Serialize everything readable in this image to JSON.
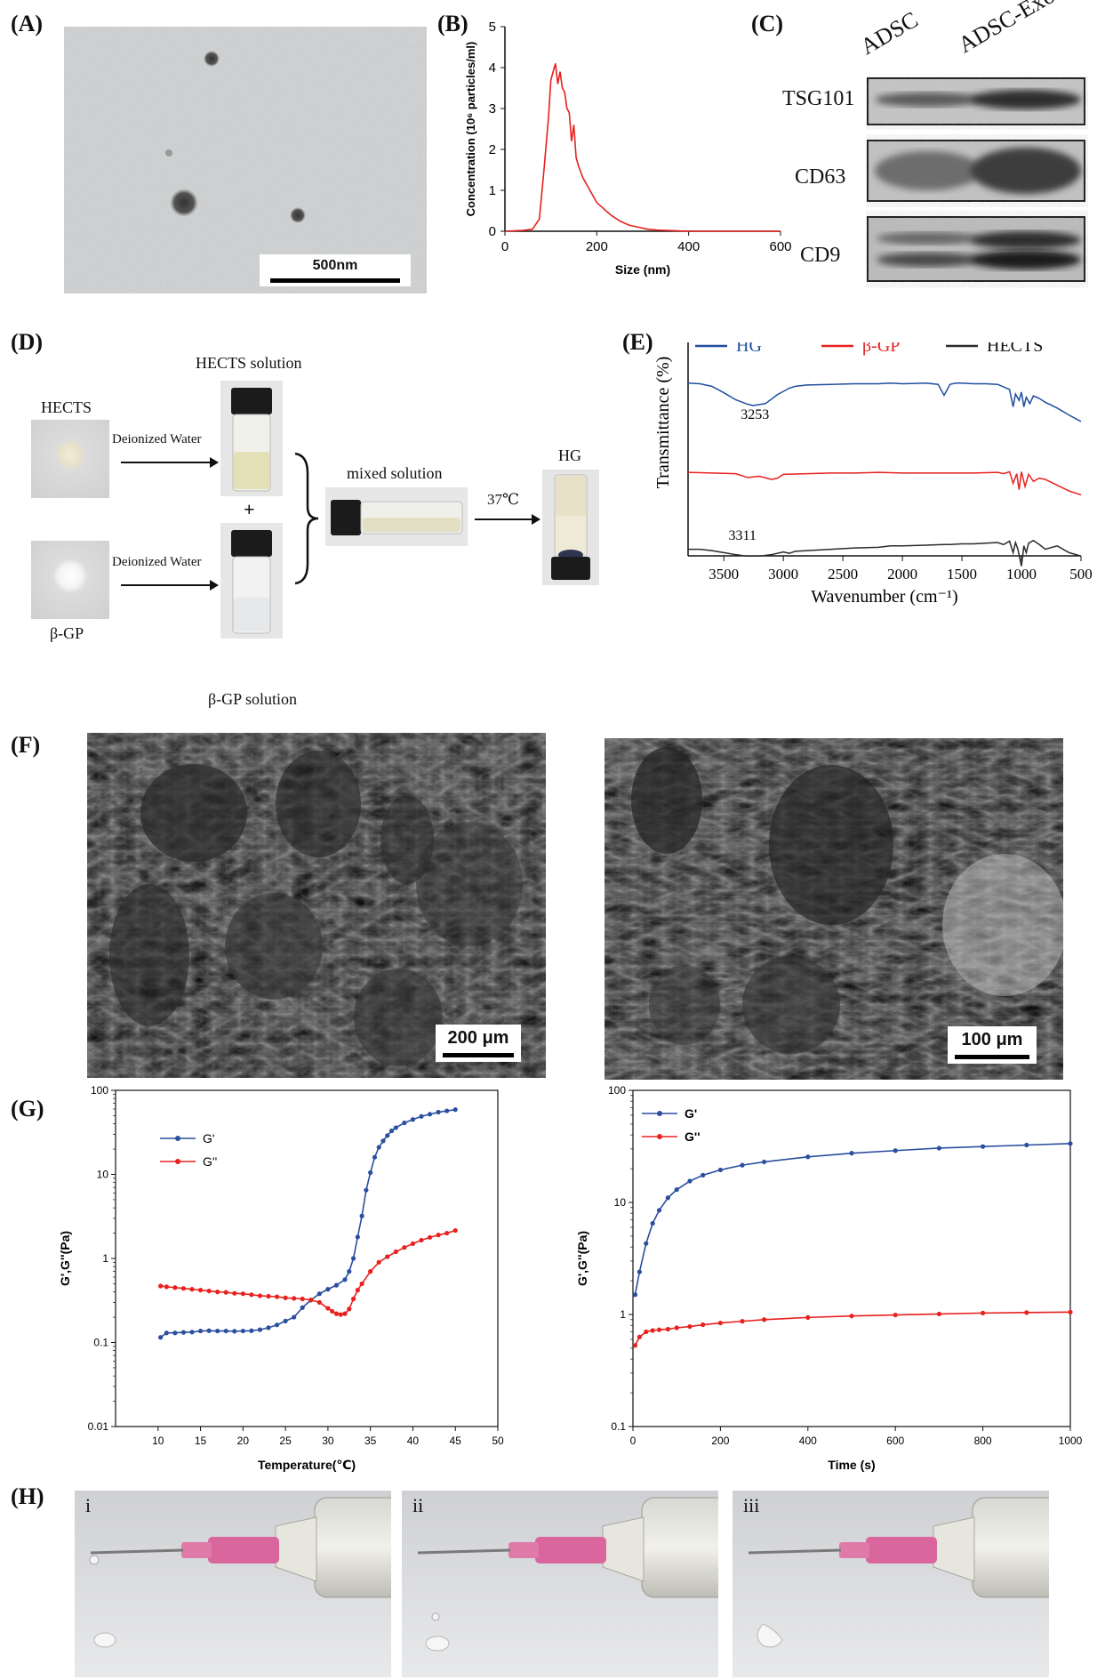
{
  "panels": {
    "A": {
      "label": "(A)",
      "scale_bar": "500nm"
    },
    "B": {
      "label": "(B)"
    },
    "C": {
      "label": "(C)",
      "columns": [
        "ADSC",
        "ADSC-Exo"
      ],
      "rows": [
        "TSG101",
        "CD63",
        "CD9"
      ]
    },
    "D": {
      "label": "(D)",
      "hects_label": "HECTS",
      "bgp_label": "β-GP",
      "water1": "Deionized Water",
      "water2": "Deionized Water",
      "hects_solution": "HECTS solution",
      "bgp_solution": "β-GP solution",
      "plus": "+",
      "mixed": "mixed solution",
      "temp": "37℃",
      "hg": "HG"
    },
    "E": {
      "label": "(E)"
    },
    "F": {
      "label": "(F)",
      "scale_left": "200 μm",
      "scale_right": "100 μm"
    },
    "G": {
      "label": "(G)"
    },
    "H": {
      "label": "(H)",
      "subs": [
        "i",
        "ii",
        "iii"
      ]
    }
  },
  "chart_data": [
    {
      "id": "B",
      "type": "line",
      "xlabel": "Size (nm)",
      "ylabel": "Concentration (10⁶ particles/ml)",
      "xlim": [
        0,
        600
      ],
      "ylim": [
        0,
        5
      ],
      "xticks": [
        0,
        200,
        400,
        600
      ],
      "yticks": [
        0,
        1,
        2,
        3,
        4,
        5
      ],
      "color": "#e8201e",
      "x": [
        0,
        40,
        60,
        75,
        85,
        95,
        100,
        105,
        110,
        115,
        120,
        125,
        130,
        135,
        140,
        145,
        150,
        155,
        160,
        170,
        180,
        190,
        200,
        215,
        230,
        250,
        270,
        290,
        310,
        330,
        350,
        400,
        600
      ],
      "y": [
        0,
        0.02,
        0.05,
        0.3,
        1.5,
        2.8,
        3.7,
        3.9,
        4.1,
        3.6,
        3.9,
        3.5,
        3.4,
        3.0,
        2.9,
        2.2,
        2.6,
        1.8,
        1.6,
        1.3,
        1.1,
        0.9,
        0.7,
        0.55,
        0.4,
        0.25,
        0.15,
        0.1,
        0.05,
        0.03,
        0.02,
        0.0,
        0.0
      ]
    },
    {
      "id": "E",
      "type": "line",
      "xlabel": "Wavenumber (cm⁻¹)",
      "ylabel": "Transmittance (%)",
      "xlim": [
        3800,
        500
      ],
      "xticks": [
        3500,
        3000,
        2500,
        2000,
        1500,
        1000,
        500
      ],
      "legend": "top",
      "annotations": [
        "3253",
        "3311"
      ],
      "series": [
        {
          "name": "HG",
          "color": "#1f4e9c",
          "x": [
            3800,
            3700,
            3600,
            3500,
            3400,
            3300,
            3253,
            3150,
            3050,
            2950,
            2900,
            2800,
            2600,
            2400,
            2200,
            2100,
            2000,
            1800,
            1700,
            1650,
            1600,
            1550,
            1500,
            1400,
            1300,
            1200,
            1150,
            1100,
            1070,
            1050,
            1020,
            1000,
            980,
            960,
            930,
            900,
            850,
            800,
            700,
            600,
            500
          ],
          "y": [
            0.92,
            0.91,
            0.87,
            0.77,
            0.66,
            0.59,
            0.57,
            0.6,
            0.74,
            0.84,
            0.87,
            0.89,
            0.9,
            0.91,
            0.91,
            0.92,
            0.91,
            0.92,
            0.9,
            0.73,
            0.9,
            0.92,
            0.92,
            0.91,
            0.91,
            0.9,
            0.86,
            0.82,
            0.55,
            0.75,
            0.65,
            0.78,
            0.55,
            0.7,
            0.6,
            0.72,
            0.68,
            0.62,
            0.53,
            0.42,
            0.32
          ]
        },
        {
          "name": "β-GP",
          "color": "#e8201e",
          "x": [
            3800,
            3600,
            3400,
            3300,
            3200,
            3100,
            3050,
            3000,
            2800,
            2600,
            2400,
            2200,
            2000,
            1800,
            1600,
            1400,
            1200,
            1150,
            1100,
            1070,
            1040,
            1020,
            1000,
            970,
            940,
            900,
            850,
            800,
            700,
            600,
            500
          ],
          "y": [
            0.47,
            0.46,
            0.45,
            0.39,
            0.41,
            0.36,
            0.38,
            0.44,
            0.45,
            0.46,
            0.46,
            0.47,
            0.46,
            0.46,
            0.46,
            0.46,
            0.47,
            0.45,
            0.48,
            0.3,
            0.45,
            0.2,
            0.48,
            0.25,
            0.44,
            0.33,
            0.38,
            0.36,
            0.27,
            0.18,
            0.12
          ]
        },
        {
          "name": "HECTS",
          "color": "#2b2b2b",
          "x": [
            3800,
            3700,
            3600,
            3500,
            3400,
            3311,
            3200,
            3100,
            3000,
            2950,
            2900,
            2800,
            2600,
            2400,
            2200,
            2100,
            2000,
            1800,
            1650,
            1600,
            1500,
            1400,
            1300,
            1200,
            1150,
            1100,
            1070,
            1050,
            1030,
            1000,
            980,
            960,
            940,
            900,
            850,
            800,
            700,
            600,
            500
          ],
          "y": [
            0.15,
            0.15,
            0.13,
            0.1,
            0.07,
            0.05,
            0.05,
            0.07,
            0.11,
            0.09,
            0.12,
            0.13,
            0.15,
            0.17,
            0.18,
            0.2,
            0.2,
            0.21,
            0.22,
            0.22,
            0.23,
            0.23,
            0.24,
            0.25,
            0.22,
            0.27,
            0.1,
            0.25,
            0.15,
            -0.1,
            0.2,
            0.1,
            0.24,
            0.28,
            0.22,
            0.15,
            0.2,
            0.1,
            0.05
          ]
        }
      ]
    },
    {
      "id": "G1",
      "type": "line",
      "xlabel": "Temperature(℃)",
      "ylabel": "G',G''(Pa)",
      "xlim": [
        5,
        50
      ],
      "ylim": [
        0.01,
        100
      ],
      "log_y": true,
      "xticks": [
        10,
        15,
        20,
        25,
        30,
        35,
        40,
        45,
        50
      ],
      "yticks": [
        0.01,
        0.1,
        1,
        10,
        100
      ],
      "legend": "top-left",
      "series": [
        {
          "name": "G'",
          "color": "#2a4f9e",
          "x": [
            10.3,
            11,
            12,
            13,
            14,
            15,
            16,
            17,
            18,
            19,
            20,
            21,
            22,
            23,
            24,
            25,
            26,
            27,
            28,
            29,
            30,
            31,
            32,
            32.5,
            33,
            33.5,
            34,
            34.5,
            35,
            35.5,
            36,
            36.5,
            37,
            37.5,
            38,
            39,
            40,
            41,
            42,
            43,
            44,
            45
          ],
          "y": [
            0.115,
            0.13,
            0.13,
            0.132,
            0.133,
            0.137,
            0.138,
            0.137,
            0.137,
            0.136,
            0.137,
            0.138,
            0.142,
            0.15,
            0.162,
            0.18,
            0.2,
            0.26,
            0.32,
            0.38,
            0.43,
            0.48,
            0.56,
            0.7,
            1.0,
            1.8,
            3.2,
            6.5,
            10.5,
            16,
            21,
            25,
            29,
            33,
            36,
            41,
            45,
            49,
            52,
            55,
            57,
            59
          ]
        },
        {
          "name": "G''",
          "color": "#e8201e",
          "x": [
            10.3,
            11,
            12,
            13,
            14,
            15,
            16,
            17,
            18,
            19,
            20,
            21,
            22,
            23,
            24,
            25,
            26,
            27,
            28,
            29,
            30,
            30.5,
            31,
            31.5,
            32,
            32.5,
            33,
            33.5,
            34,
            35,
            36,
            37,
            38,
            39,
            40,
            41,
            42,
            43,
            44,
            45
          ],
          "y": [
            0.47,
            0.46,
            0.45,
            0.44,
            0.43,
            0.42,
            0.41,
            0.4,
            0.395,
            0.385,
            0.38,
            0.37,
            0.36,
            0.355,
            0.35,
            0.34,
            0.335,
            0.33,
            0.32,
            0.3,
            0.255,
            0.235,
            0.22,
            0.215,
            0.22,
            0.25,
            0.33,
            0.42,
            0.5,
            0.7,
            0.9,
            1.05,
            1.2,
            1.35,
            1.5,
            1.65,
            1.78,
            1.9,
            2.0,
            2.15
          ]
        }
      ]
    },
    {
      "id": "G2",
      "type": "line",
      "xlabel": "Time (s)",
      "ylabel": "G',G''(Pa)",
      "xlim": [
        0,
        1000
      ],
      "ylim": [
        0.1,
        100
      ],
      "log_y": true,
      "xticks": [
        0,
        200,
        400,
        600,
        800,
        1000
      ],
      "yticks": [
        0.1,
        1,
        10,
        100
      ],
      "legend": "top-left",
      "series": [
        {
          "name": "G'",
          "color": "#2a4f9e",
          "x": [
            5,
            15,
            30,
            45,
            60,
            80,
            100,
            130,
            160,
            200,
            250,
            300,
            400,
            500,
            600,
            700,
            800,
            900,
            1000
          ],
          "y": [
            1.5,
            2.4,
            4.3,
            6.5,
            8.5,
            11,
            13,
            15.5,
            17.5,
            19.5,
            21.5,
            23,
            25.5,
            27.5,
            29,
            30.5,
            31.5,
            32.5,
            33.5
          ]
        },
        {
          "name": "G''",
          "color": "#e8201e",
          "x": [
            5,
            15,
            30,
            45,
            60,
            80,
            100,
            130,
            160,
            200,
            250,
            300,
            400,
            500,
            600,
            700,
            800,
            900,
            1000
          ],
          "y": [
            0.53,
            0.63,
            0.7,
            0.72,
            0.73,
            0.74,
            0.76,
            0.78,
            0.81,
            0.84,
            0.87,
            0.9,
            0.94,
            0.97,
            0.99,
            1.01,
            1.03,
            1.04,
            1.05
          ]
        }
      ]
    }
  ]
}
